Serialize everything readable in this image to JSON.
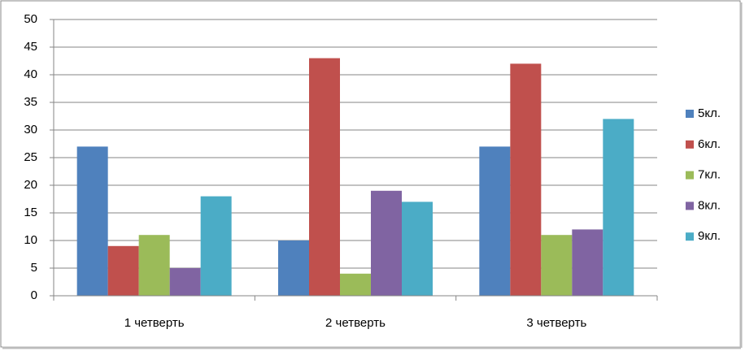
{
  "chart_data": {
    "type": "bar",
    "categories": [
      "1 четверть",
      "2 четверть",
      "3 четверть"
    ],
    "series": [
      {
        "name": "5кл.",
        "color": "#4f81bd",
        "values": [
          27,
          10,
          27
        ]
      },
      {
        "name": "6кл.",
        "color": "#c0504d",
        "values": [
          9,
          43,
          42
        ]
      },
      {
        "name": "7кл.",
        "color": "#9bbb59",
        "values": [
          11,
          4,
          11
        ]
      },
      {
        "name": "8кл.",
        "color": "#8064a2",
        "values": [
          5,
          19,
          12
        ]
      },
      {
        "name": "9кл.",
        "color": "#4bacc6",
        "values": [
          18,
          17,
          32
        ]
      }
    ],
    "ylim": [
      0,
      50
    ],
    "yticks": [
      0,
      5,
      10,
      15,
      20,
      25,
      30,
      35,
      40,
      45,
      50
    ],
    "grid": true,
    "legend": "right"
  }
}
